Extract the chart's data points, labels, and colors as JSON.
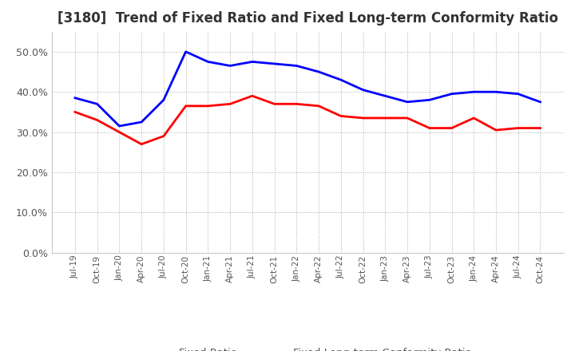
{
  "title": "[3180]  Trend of Fixed Ratio and Fixed Long-term Conformity Ratio",
  "x_labels": [
    "Jul-19",
    "Oct-19",
    "Jan-20",
    "Apr-20",
    "Jul-20",
    "Oct-20",
    "Jan-21",
    "Apr-21",
    "Jul-21",
    "Oct-21",
    "Jan-22",
    "Apr-22",
    "Jul-22",
    "Oct-22",
    "Jan-23",
    "Apr-23",
    "Jul-23",
    "Oct-23",
    "Jan-24",
    "Apr-24",
    "Jul-24",
    "Oct-24"
  ],
  "fixed_ratio": [
    38.5,
    37.0,
    31.5,
    32.5,
    38.0,
    50.0,
    47.5,
    46.5,
    47.5,
    47.0,
    46.5,
    45.0,
    43.0,
    40.5,
    39.0,
    37.5,
    38.0,
    39.5,
    40.0,
    40.0,
    39.5,
    37.5
  ],
  "fixed_lt_ratio": [
    35.0,
    33.0,
    30.0,
    27.0,
    29.0,
    36.5,
    36.5,
    37.0,
    39.0,
    37.0,
    37.0,
    36.5,
    34.0,
    33.5,
    33.5,
    33.5,
    31.0,
    31.0,
    33.5,
    30.5,
    31.0,
    31.0
  ],
  "fixed_ratio_color": "#0000ff",
  "fixed_lt_ratio_color": "#ff0000",
  "ylim": [
    0.0,
    55.0
  ],
  "yticks": [
    0.0,
    10.0,
    20.0,
    30.0,
    40.0,
    50.0
  ],
  "background_color": "#ffffff",
  "grid_color": "#aaaaaa",
  "title_fontsize": 12,
  "legend_labels": [
    "Fixed Ratio",
    "Fixed Long-term Conformity Ratio"
  ]
}
